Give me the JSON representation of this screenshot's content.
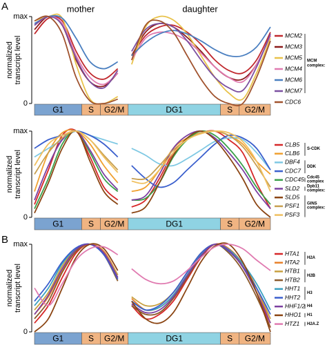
{
  "figure": {
    "panels": [
      "A",
      "B"
    ],
    "columns": [
      "mother",
      "daughter"
    ]
  },
  "chart_data": [
    {
      "type": "line",
      "ylabel": [
        "normalized",
        "transcript level"
      ],
      "ylim": [
        0,
        1
      ],
      "yticks": [
        0,
        {
          "value": 1,
          "label": "max"
        }
      ],
      "xlim": [
        0,
        34
      ],
      "x": [
        0,
        2,
        4,
        6,
        8,
        10,
        12,
        13,
        14,
        16,
        18,
        20,
        22,
        24,
        26,
        28,
        30,
        32,
        34
      ],
      "phases": [
        {
          "label": "G1",
          "start": 0,
          "end": 6.8,
          "color": "#7ba3d0"
        },
        {
          "label": "S",
          "start": 6.8,
          "end": 9.5,
          "color": "#f0b482"
        },
        {
          "label": "G2/M",
          "start": 9.5,
          "end": 13.5,
          "color": "#f0b482"
        },
        {
          "label": "DG1",
          "start": 13.5,
          "end": 26.8,
          "color": "#8fd3e3"
        },
        {
          "label": "S",
          "start": 26.8,
          "end": 29.5,
          "color": "#f0b482"
        },
        {
          "label": "G2/M",
          "start": 29.5,
          "end": 34,
          "color": "#f0b482"
        }
      ],
      "series": [
        {
          "name": "MCM2",
          "color": "#c0282d",
          "values": [
            0.8,
            0.98,
            0.95,
            0.6,
            0.35,
            0.28,
            0.4,
            null,
            0.55,
            0.78,
            0.88,
            0.9,
            0.82,
            0.68,
            0.5,
            0.38,
            0.35,
            0.5,
            0.82
          ]
        },
        {
          "name": "MCM3",
          "color": "#8b1a1a",
          "values": [
            0.85,
            1,
            0.9,
            0.5,
            0.25,
            0.2,
            0.35,
            null,
            0.55,
            0.82,
            0.92,
            0.88,
            0.76,
            0.6,
            0.42,
            0.3,
            0.28,
            0.45,
            0.78
          ]
        },
        {
          "name": "MCM5",
          "color": "#e8c24a",
          "values": [
            0.95,
            1,
            0.98,
            0.45,
            0.05,
            0,
            0.08,
            null,
            0.45,
            0.88,
            1,
            0.96,
            0.8,
            0.55,
            0.3,
            0.12,
            0.05,
            0.35,
            0.75
          ]
        },
        {
          "name": "MCM4",
          "color": "#e07ab0",
          "values": [
            0.9,
            1,
            0.92,
            0.55,
            0.3,
            0.22,
            0.35,
            null,
            0.5,
            0.75,
            0.82,
            0.8,
            0.72,
            0.58,
            0.42,
            0.3,
            0.25,
            0.45,
            0.78
          ]
        },
        {
          "name": "MCM6",
          "color": "#4a7fc0",
          "values": [
            0.92,
            1,
            0.98,
            0.75,
            0.48,
            0.4,
            0.48,
            null,
            0.55,
            0.7,
            0.8,
            0.84,
            0.8,
            0.72,
            0.62,
            0.55,
            0.55,
            0.65,
            0.88
          ]
        },
        {
          "name": "MCM7",
          "color": "#7b4fa0",
          "values": [
            0.9,
            1,
            0.9,
            0.52,
            0.25,
            0.18,
            0.38,
            null,
            0.6,
            0.85,
            0.92,
            0.88,
            0.72,
            0.5,
            0.3,
            0.18,
            0.15,
            0.42,
            0.8
          ]
        },
        {
          "name": "CDC6",
          "color": "#a0522d",
          "values": [
            0.95,
            1,
            0.8,
            0.3,
            0.03,
            0,
            0.05,
            null,
            0.5,
            0.9,
            0.95,
            0.82,
            0.55,
            0.28,
            0.08,
            0,
            0,
            0.3,
            0.72
          ]
        }
      ],
      "groups": [
        {
          "label": "MCM complex:",
          "first": 0,
          "last": 5
        }
      ]
    },
    {
      "type": "line",
      "ylabel": [
        "normalized",
        "transcript level"
      ],
      "ylim": [
        0,
        1
      ],
      "yticks": [
        0,
        {
          "value": 1,
          "label": "max"
        }
      ],
      "xlim": [
        0,
        34
      ],
      "x": [
        0,
        2,
        4,
        6,
        8,
        10,
        12,
        13,
        14,
        16,
        18,
        20,
        22,
        24,
        26,
        28,
        30,
        32,
        34
      ],
      "phases": [
        {
          "label": "G1",
          "start": 0,
          "end": 6.8,
          "color": "#7ba3d0"
        },
        {
          "label": "S",
          "start": 6.8,
          "end": 9.5,
          "color": "#f0b482"
        },
        {
          "label": "G2/M",
          "start": 9.5,
          "end": 13.5,
          "color": "#f0b482"
        },
        {
          "label": "DG1",
          "start": 13.5,
          "end": 26.8,
          "color": "#8fd3e3"
        },
        {
          "label": "S",
          "start": 26.8,
          "end": 29.5,
          "color": "#f0b482"
        },
        {
          "label": "G2/M",
          "start": 29.5,
          "end": 34,
          "color": "#f0b482"
        }
      ],
      "series": [
        {
          "name": "CLB5",
          "color": "#d62728",
          "values": [
            0.15,
            0.55,
            0.95,
            1,
            0.7,
            0.35,
            0.2,
            null,
            0.12,
            0.2,
            0.45,
            0.75,
            0.9,
            0.98,
            1,
            0.9,
            0.75,
            0.4,
            0.1
          ]
        },
        {
          "name": "CLB6",
          "color": "#f0a030",
          "values": [
            0.3,
            0.75,
            0.98,
            1,
            0.85,
            0.6,
            0.4,
            null,
            0.3,
            0.35,
            0.55,
            0.8,
            0.92,
            0.98,
            1,
            0.95,
            0.85,
            0.65,
            0.5
          ]
        },
        {
          "name": "DBF4",
          "color": "#7ec8e3",
          "values": [
            0.7,
            0.8,
            0.9,
            1,
            0.95,
            0.9,
            0.85,
            null,
            0.8,
            0.72,
            0.62,
            0.6,
            0.68,
            0.78,
            0.88,
            0.92,
            0.9,
            0.75,
            0.55
          ]
        },
        {
          "name": "CDC7",
          "color": "#3a5fcd",
          "values": [
            0.8,
            0.9,
            0.95,
            1,
            0.95,
            0.85,
            0.7,
            null,
            0.6,
            0.45,
            0.35,
            0.4,
            0.55,
            0.7,
            0.85,
            0.95,
            0.92,
            0.8,
            0.55
          ]
        },
        {
          "name": "CDC45",
          "color": "#3aa04a",
          "values": [
            0.1,
            0.45,
            0.85,
            1,
            0.75,
            0.45,
            0.3,
            null,
            0.2,
            0.22,
            0.4,
            0.7,
            0.9,
            1,
            0.95,
            0.8,
            0.6,
            0.35,
            0.15
          ]
        },
        {
          "name": "SLD2",
          "color": "#7b3fa0",
          "values": [
            0.2,
            0.6,
            0.9,
            1,
            0.78,
            0.5,
            0.32,
            null,
            0.2,
            0.25,
            0.5,
            0.8,
            0.95,
            1,
            0.92,
            0.75,
            0.55,
            0.3,
            0.1
          ]
        },
        {
          "name": "SLD5",
          "color": "#8b4513",
          "values": [
            0.05,
            0.4,
            0.8,
            1,
            0.65,
            0.3,
            0.15,
            null,
            0.05,
            0.12,
            0.4,
            0.72,
            0.92,
            1,
            0.9,
            0.7,
            0.45,
            0.15,
            0
          ]
        },
        {
          "name": "PSF1",
          "color": "#c8a050",
          "values": [
            0.5,
            0.75,
            0.92,
            1,
            0.9,
            0.72,
            0.55,
            null,
            0.45,
            0.45,
            0.6,
            0.78,
            0.9,
            0.98,
            1,
            0.95,
            0.82,
            0.6,
            0.35
          ]
        },
        {
          "name": "PSF3",
          "color": "#f0c060",
          "values": [
            0.6,
            0.85,
            0.95,
            1,
            0.9,
            0.7,
            0.52,
            null,
            0.42,
            0.4,
            0.55,
            0.75,
            0.9,
            0.97,
            1,
            0.98,
            0.88,
            0.65,
            0.3
          ]
        }
      ],
      "groups": [
        {
          "label": "S-CDK",
          "first": 0,
          "last": 1
        },
        {
          "label": "DDK",
          "first": 2,
          "last": 3
        },
        {
          "label": "Cdc45 complex",
          "first": 4,
          "last": 4
        },
        {
          "label": "Dpb11 complex:",
          "first": 5,
          "last": 5
        },
        {
          "label": "GINS complex:",
          "first": 6,
          "last": 8
        }
      ]
    },
    {
      "type": "line",
      "ylabel": [
        "normalized",
        "transcript level"
      ],
      "ylim": [
        0,
        1
      ],
      "yticks": [
        0,
        {
          "value": 1,
          "label": "max"
        }
      ],
      "xlim": [
        0,
        34
      ],
      "x": [
        0,
        2,
        4,
        6,
        8,
        10,
        12,
        13,
        14,
        16,
        18,
        20,
        22,
        24,
        26,
        28,
        30,
        32,
        34
      ],
      "phases": [
        {
          "label": "G1",
          "start": 0,
          "end": 6.8,
          "color": "#7ba3d0"
        },
        {
          "label": "S",
          "start": 6.8,
          "end": 9.5,
          "color": "#f0b482"
        },
        {
          "label": "G2/M",
          "start": 9.5,
          "end": 13.5,
          "color": "#f0b482"
        },
        {
          "label": "DG1",
          "start": 13.5,
          "end": 26.8,
          "color": "#8fd3e3"
        },
        {
          "label": "S",
          "start": 26.8,
          "end": 29.5,
          "color": "#f0b482"
        },
        {
          "label": "G2/M",
          "start": 29.5,
          "end": 34,
          "color": "#f0b482"
        }
      ],
      "series": [
        {
          "name": "HTA1",
          "color": "#d62728",
          "values": [
            0.1,
            0.3,
            0.62,
            0.9,
            1,
            0.9,
            0.6,
            null,
            0.3,
            0.15,
            0.2,
            0.35,
            0.6,
            0.85,
            1,
            0.95,
            0.75,
            0.45,
            0.05
          ]
        },
        {
          "name": "HTA2",
          "color": "#e8802a",
          "values": [
            0.2,
            0.4,
            0.7,
            0.92,
            1,
            0.92,
            0.65,
            null,
            0.38,
            0.25,
            0.28,
            0.42,
            0.65,
            0.88,
            1,
            0.95,
            0.78,
            0.5,
            0.1
          ]
        },
        {
          "name": "HTB1",
          "color": "#c8a040",
          "values": [
            0.25,
            0.45,
            0.75,
            0.95,
            1,
            0.9,
            0.65,
            null,
            0.4,
            0.3,
            0.32,
            0.45,
            0.68,
            0.9,
            1,
            0.92,
            0.75,
            0.5,
            0.15
          ]
        },
        {
          "name": "HTB2",
          "color": "#8b5a2b",
          "values": [
            0.15,
            0.35,
            0.68,
            0.92,
            1,
            0.88,
            0.58,
            null,
            0.3,
            0.2,
            0.22,
            0.38,
            0.62,
            0.86,
            1,
            0.9,
            0.7,
            0.4,
            0.05
          ]
        },
        {
          "name": "HHT1",
          "color": "#3aa0c0",
          "values": [
            0.3,
            0.5,
            0.78,
            0.95,
            1,
            0.9,
            0.62,
            null,
            0.35,
            0.25,
            0.28,
            0.42,
            0.65,
            0.88,
            1,
            0.94,
            0.78,
            0.55,
            0.25
          ]
        },
        {
          "name": "HHT2",
          "color": "#3a5fcd",
          "values": [
            0.35,
            0.55,
            0.8,
            0.96,
            1,
            0.88,
            0.6,
            null,
            0.35,
            0.25,
            0.3,
            0.45,
            0.68,
            0.9,
            1,
            0.92,
            0.75,
            0.5,
            0.2
          ]
        },
        {
          "name": "HHF1/2",
          "color": "#7b3fa0",
          "values": [
            0.2,
            0.42,
            0.72,
            0.94,
            1,
            0.9,
            0.62,
            null,
            0.32,
            0.22,
            0.25,
            0.4,
            0.64,
            0.87,
            1,
            0.93,
            0.74,
            0.45,
            0.1
          ]
        },
        {
          "name": "HHO1",
          "color": "#8b4513",
          "values": [
            0,
            0.15,
            0.5,
            0.85,
            1,
            0.95,
            0.7,
            null,
            0.35,
            0.15,
            0.1,
            0.22,
            0.5,
            0.8,
            0.98,
            1,
            0.8,
            0.45,
            0
          ]
        },
        {
          "name": "HTZ1",
          "color": "#e07ab0",
          "values": [
            0.5,
            0.3,
            0.55,
            0.82,
            0.95,
            0.97,
            0.88,
            null,
            0.72,
            0.6,
            0.55,
            0.58,
            0.7,
            0.85,
            0.97,
            1,
            0.95,
            0.82,
            0.7
          ]
        }
      ],
      "groups": [
        {
          "label": "H2A",
          "first": 0,
          "last": 1
        },
        {
          "label": "H2B",
          "first": 2,
          "last": 3
        },
        {
          "label": "H3",
          "first": 4,
          "last": 5
        },
        {
          "label": "H4",
          "first": 6,
          "last": 6
        },
        {
          "label": "H1",
          "first": 7,
          "last": 7
        },
        {
          "label": "H2A.Z",
          "first": 8,
          "last": 8
        }
      ]
    }
  ]
}
